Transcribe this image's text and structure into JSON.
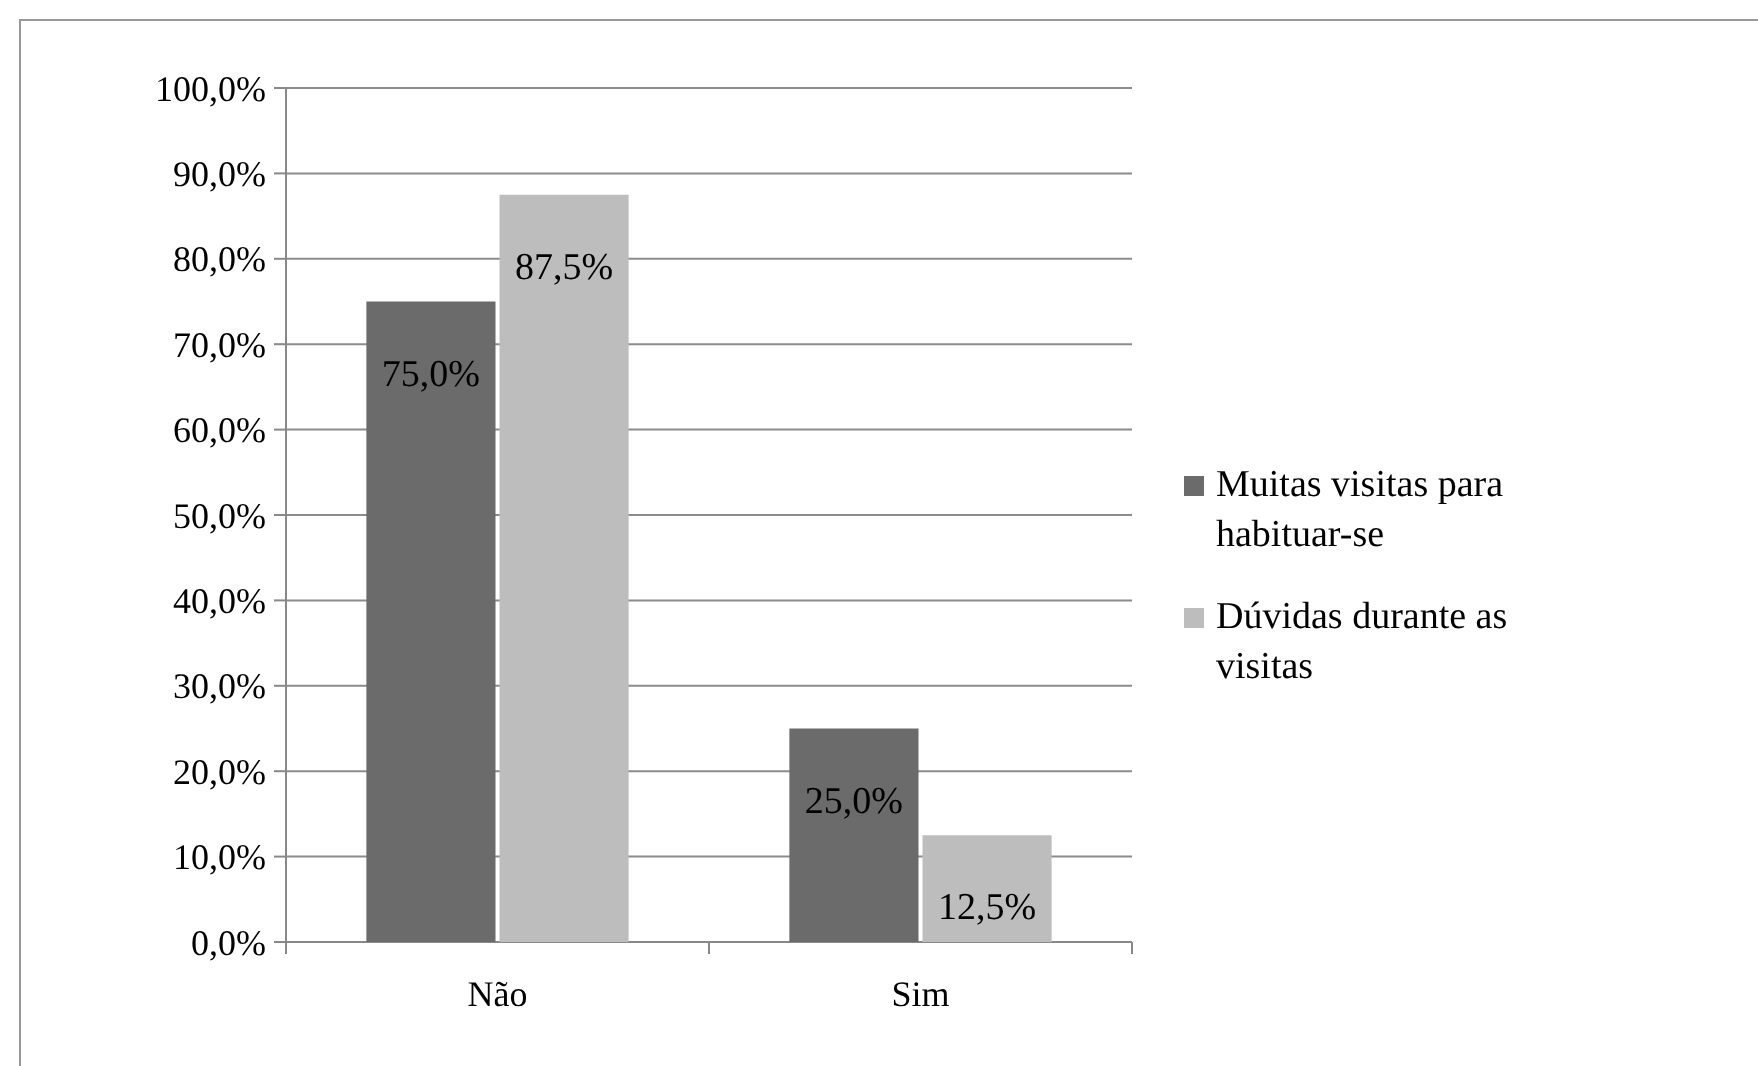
{
  "chart_data": {
    "type": "bar",
    "categories": [
      "Não",
      "Sim"
    ],
    "series": [
      {
        "name": "Muitas visitas para habituar-se",
        "color": "#6b6b6b",
        "values": [
          75.0,
          25.0
        ],
        "value_labels": [
          "75,0%",
          "25,0%"
        ]
      },
      {
        "name": "Dúvidas durante as visitas",
        "color": "#bdbdbd",
        "values": [
          87.5,
          12.5
        ],
        "value_labels": [
          "87,5%",
          "12,5%"
        ]
      }
    ],
    "ylim": [
      0,
      100
    ],
    "yticks": [
      {
        "value": 0,
        "label": "0,0%"
      },
      {
        "value": 10,
        "label": "10,0%"
      },
      {
        "value": 20,
        "label": "20,0%"
      },
      {
        "value": 30,
        "label": "30,0%"
      },
      {
        "value": 40,
        "label": "40,0%"
      },
      {
        "value": 50,
        "label": "50,0%"
      },
      {
        "value": 60,
        "label": "60,0%"
      },
      {
        "value": 70,
        "label": "70,0%"
      },
      {
        "value": 80,
        "label": "80,0%"
      },
      {
        "value": 90,
        "label": "90,0%"
      },
      {
        "value": 100,
        "label": "100,0%"
      }
    ],
    "grid": "y",
    "legend": "right"
  }
}
